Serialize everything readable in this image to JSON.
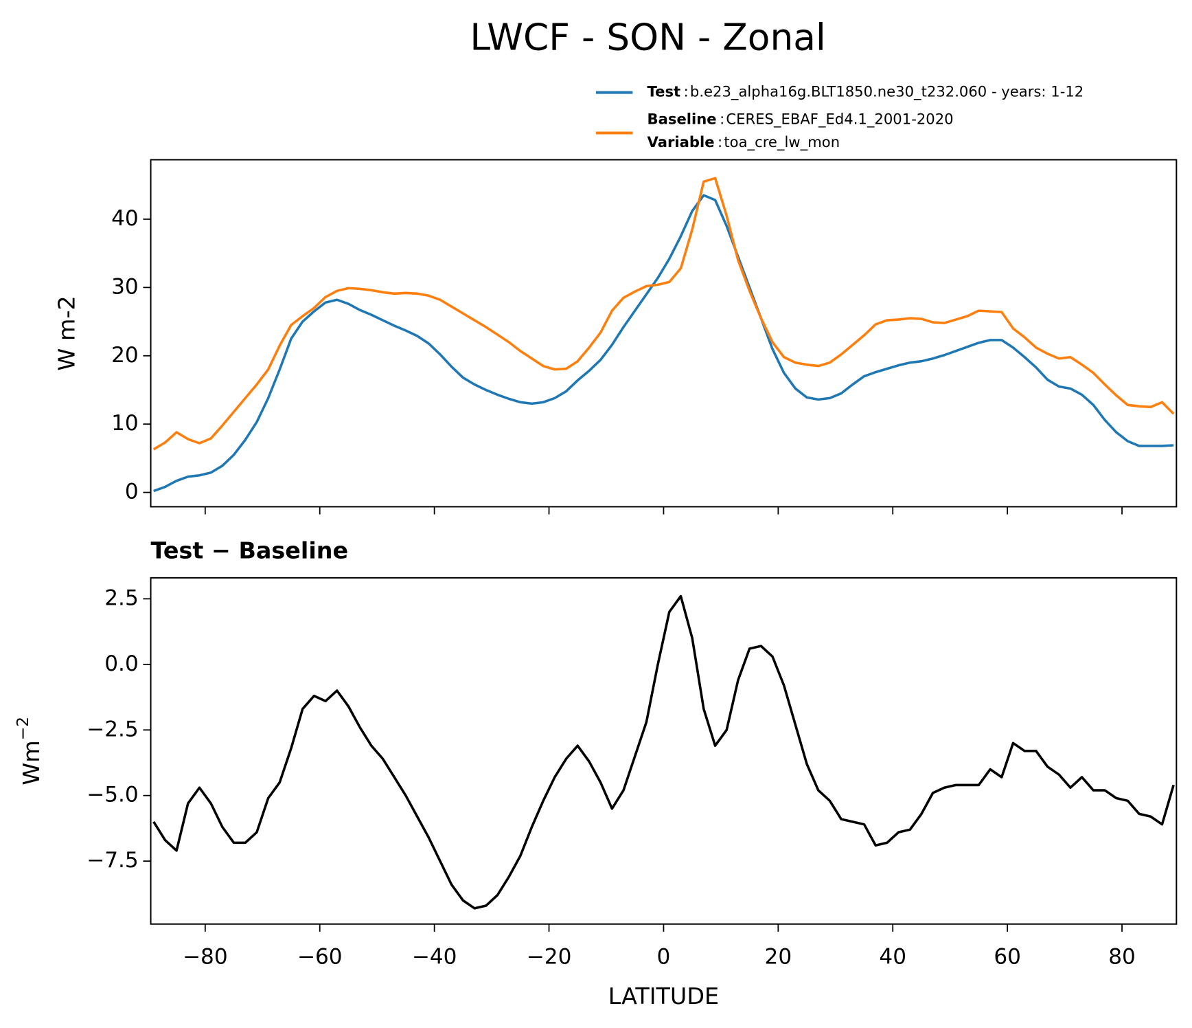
{
  "title": "LWCF - SON - Zonal",
  "legend_separator": ":",
  "chart_data": [
    {
      "type": "line",
      "ylabel": "W m-2",
      "x": [
        -89,
        -87,
        -85,
        -83,
        -81,
        -79,
        -77,
        -75,
        -73,
        -71,
        -69,
        -67,
        -65,
        -63,
        -61,
        -59,
        -57,
        -55,
        -53,
        -51,
        -49,
        -47,
        -45,
        -43,
        -41,
        -39,
        -37,
        -35,
        -33,
        -31,
        -29,
        -27,
        -25,
        -23,
        -21,
        -19,
        -17,
        -15,
        -13,
        -11,
        -9,
        -7,
        -5,
        -3,
        -1,
        1,
        3,
        5,
        7,
        9,
        11,
        13,
        15,
        17,
        19,
        21,
        23,
        25,
        27,
        29,
        31,
        33,
        35,
        37,
        39,
        41,
        43,
        45,
        47,
        49,
        51,
        53,
        55,
        57,
        59,
        61,
        63,
        65,
        67,
        69,
        71,
        73,
        75,
        77,
        79,
        81,
        83,
        85,
        87,
        89
      ],
      "xlim": [
        -89.5,
        89.5
      ],
      "xticks": [
        {
          "value": -80,
          "label": "−80"
        },
        {
          "value": -60,
          "label": "−60"
        },
        {
          "value": -40,
          "label": "−40"
        },
        {
          "value": -20,
          "label": "−20"
        },
        0,
        20,
        40,
        60,
        80
      ],
      "ylim": [
        -2.1,
        48.7
      ],
      "yticks": [
        0,
        10,
        20,
        30,
        40
      ],
      "series": [
        {
          "name": "Test",
          "label": "b.e23_alpha16g.BLT1850.ne30_t232.060 - years: 1-12",
          "color": "#1f77b4",
          "values": [
            0.2,
            0.8,
            1.7,
            2.3,
            2.5,
            2.9,
            3.9,
            5.5,
            7.7,
            10.3,
            13.8,
            18,
            22.5,
            25,
            26.5,
            27.8,
            28.2,
            27.6,
            26.7,
            26,
            25.2,
            24.4,
            23.7,
            22.9,
            21.8,
            20.2,
            18.4,
            16.8,
            15.8,
            15,
            14.3,
            13.7,
            13.2,
            13,
            13.2,
            13.8,
            14.8,
            16.4,
            17.8,
            19.4,
            21.6,
            24.2,
            26.6,
            29,
            31.4,
            34.2,
            37.5,
            41.2,
            43.5,
            42.8,
            39,
            34.5,
            30,
            25.5,
            21,
            17.5,
            15.2,
            13.9,
            13.6,
            13.8,
            14.5,
            15.8,
            17,
            17.6,
            18.1,
            18.6,
            19,
            19.2,
            19.6,
            20.1,
            20.7,
            21.3,
            21.9,
            22.3,
            22.3,
            21.2,
            19.8,
            18.3,
            16.5,
            15.5,
            15.2,
            14.3,
            12.8,
            10.6,
            8.8,
            7.5,
            6.8,
            6.8,
            6.8,
            6.9
          ]
        },
        {
          "name": "Baseline",
          "label": "CERES_EBAF_Ed4.1_2001-2020",
          "extra_name": "Variable",
          "extra_label": "toa_cre_lw_mon",
          "color": "#ff7f0e",
          "values": [
            6.3,
            7.3,
            8.8,
            7.8,
            7.2,
            7.9,
            9.8,
            11.8,
            13.8,
            15.8,
            18,
            21.5,
            24.5,
            25.8,
            27,
            28.6,
            29.5,
            29.9,
            29.8,
            29.6,
            29.3,
            29.1,
            29.2,
            29.1,
            28.8,
            28.2,
            27.2,
            26.2,
            25.2,
            24.2,
            23.1,
            22,
            20.7,
            19.6,
            18.5,
            18,
            18.1,
            19.2,
            21.2,
            23.4,
            26.6,
            28.5,
            29.4,
            30.2,
            30.4,
            30.8,
            32.8,
            38.5,
            45.5,
            46,
            40.5,
            34,
            29.5,
            25.5,
            22,
            19.8,
            19,
            18.7,
            18.5,
            19,
            20.2,
            21.6,
            23,
            24.6,
            25.2,
            25.3,
            25.5,
            25.4,
            24.9,
            24.8,
            25.3,
            25.8,
            26.6,
            26.5,
            26.4,
            24,
            22.7,
            21.2,
            20.3,
            19.6,
            19.8,
            18.7,
            17.5,
            15.8,
            14.2,
            12.8,
            12.6,
            12.5,
            13.2,
            11.5
          ]
        }
      ]
    },
    {
      "type": "line",
      "title": "Test − Baseline",
      "xlabel": "LATITUDE",
      "ylabel": "Wm",
      "ylabel_sup": "−2",
      "x": [
        -89,
        -87,
        -85,
        -83,
        -81,
        -79,
        -77,
        -75,
        -73,
        -71,
        -69,
        -67,
        -65,
        -63,
        -61,
        -59,
        -57,
        -55,
        -53,
        -51,
        -49,
        -47,
        -45,
        -43,
        -41,
        -39,
        -37,
        -35,
        -33,
        -31,
        -29,
        -27,
        -25,
        -23,
        -21,
        -19,
        -17,
        -15,
        -13,
        -11,
        -9,
        -7,
        -5,
        -3,
        -1,
        1,
        3,
        5,
        7,
        9,
        11,
        13,
        15,
        17,
        19,
        21,
        23,
        25,
        27,
        29,
        31,
        33,
        35,
        37,
        39,
        41,
        43,
        45,
        47,
        49,
        51,
        53,
        55,
        57,
        59,
        61,
        63,
        65,
        67,
        69,
        71,
        73,
        75,
        77,
        79,
        81,
        83,
        85,
        87,
        89
      ],
      "xlim": [
        -89.5,
        89.5
      ],
      "xticks": [
        {
          "value": -80,
          "label": "−80"
        },
        {
          "value": -60,
          "label": "−60"
        },
        {
          "value": -40,
          "label": "−40"
        },
        {
          "value": -20,
          "label": "−20"
        },
        0,
        20,
        40,
        60,
        80
      ],
      "ylim": [
        -9.9,
        3.3
      ],
      "yticks": [
        2.5,
        {
          "value": 0,
          "label": "0.0"
        },
        {
          "value": -2.5,
          "label": "−2.5"
        },
        {
          "value": -5,
          "label": "−5.0"
        },
        {
          "value": -7.5,
          "label": "−7.5"
        }
      ],
      "series": [
        {
          "color": "#000000",
          "values": [
            -6,
            -6.7,
            -7.1,
            -5.3,
            -4.7,
            -5.3,
            -6.2,
            -6.8,
            -6.8,
            -6.4,
            -5.1,
            -4.5,
            -3.2,
            -1.7,
            -1.2,
            -1.4,
            -1,
            -1.6,
            -2.4,
            -3.1,
            -3.6,
            -4.3,
            -5,
            -5.8,
            -6.6,
            -7.5,
            -8.4,
            -9,
            -9.3,
            -9.2,
            -8.8,
            -8.1,
            -7.3,
            -6.2,
            -5.2,
            -4.3,
            -3.6,
            -3.1,
            -3.7,
            -4.5,
            -5.5,
            -4.8,
            -3.5,
            -2.2,
            0,
            2,
            2.6,
            1,
            -1.7,
            -3.1,
            -2.5,
            -0.6,
            0.6,
            0.7,
            0.3,
            -0.8,
            -2.3,
            -3.8,
            -4.8,
            -5.2,
            -5.9,
            -6,
            -6.1,
            -6.9,
            -6.8,
            -6.4,
            -6.3,
            -5.7,
            -4.9,
            -4.7,
            -4.6,
            -4.6,
            -4.6,
            -4,
            -4.3,
            -3,
            -3.3,
            -3.3,
            -3.9,
            -4.2,
            -4.7,
            -4.3,
            -4.8,
            -4.8,
            -5.1,
            -5.2,
            -5.7,
            -5.8,
            -6.1,
            -4.6
          ]
        }
      ]
    }
  ]
}
